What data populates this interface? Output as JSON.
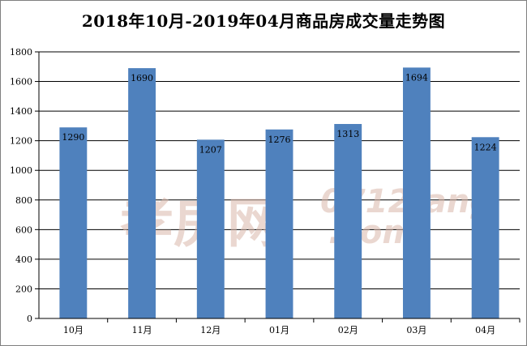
{
  "chart_data": {
    "type": "bar",
    "title": "2018年10月-2019年04月商品房成交量走势图",
    "categories": [
      "10月",
      "11月",
      "12月",
      "01月",
      "02月",
      "03月",
      "04月"
    ],
    "values": [
      1290,
      1690,
      1207,
      1276,
      1313,
      1694,
      1224
    ],
    "ylim": [
      0,
      1800
    ],
    "yticks": [
      0,
      200,
      400,
      600,
      800,
      1000,
      1200,
      1400,
      1600,
      1800
    ],
    "grid": true,
    "bar_color": "#4f81bd",
    "xlabel": "",
    "ylabel": ""
  },
  "watermark": {
    "main": "孝房网",
    "domain": "0712fang",
    "tld": ".com"
  }
}
